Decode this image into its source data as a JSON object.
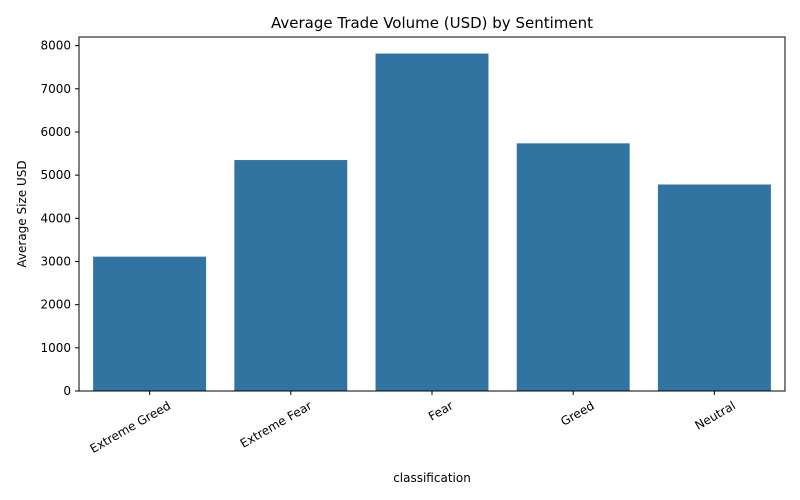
{
  "chart_data": {
    "type": "bar",
    "title": "Average Trade Volume (USD) by Sentiment",
    "xlabel": "classification",
    "ylabel": "Average Size USD",
    "categories": [
      "Extreme Greed",
      "Extreme Fear",
      "Fear",
      "Greed",
      "Neutral"
    ],
    "values": [
      3112,
      5350,
      7816,
      5737,
      4783
    ],
    "ylim": [
      0,
      8200
    ],
    "yticks": [
      0,
      1000,
      2000,
      3000,
      4000,
      5000,
      6000,
      7000,
      8000
    ],
    "grid": false,
    "legend": "none",
    "bar_color": "#3274a1"
  }
}
